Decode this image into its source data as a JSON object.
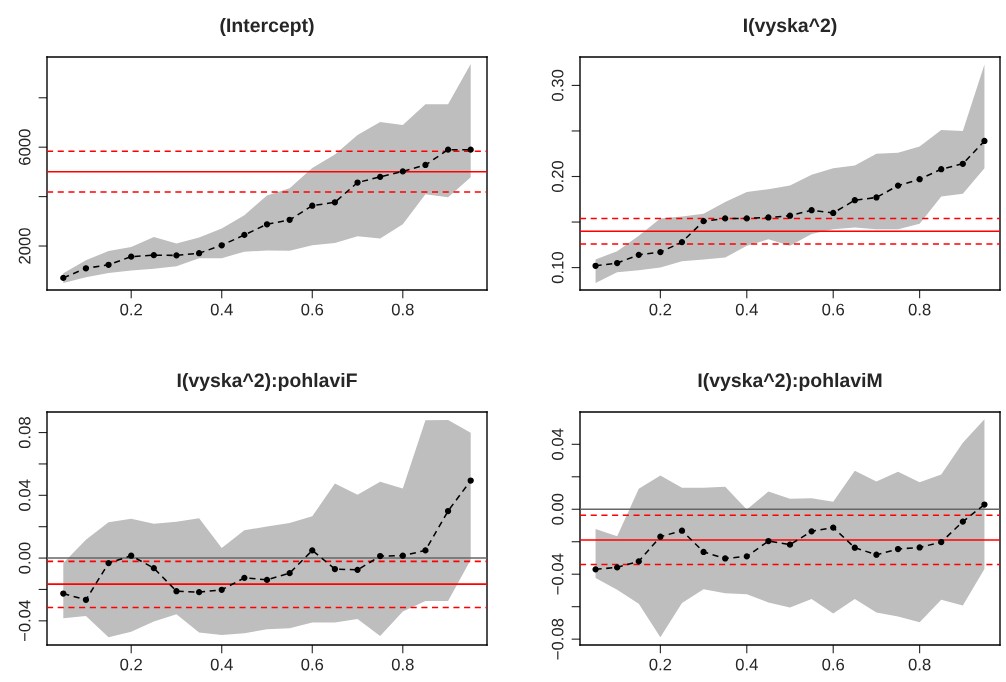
{
  "chart_data": [
    {
      "type": "line",
      "title": "(Intercept)",
      "x": [
        0.05,
        0.1,
        0.15,
        0.2,
        0.25,
        0.3,
        0.35,
        0.4,
        0.45,
        0.5,
        0.55,
        0.6,
        0.65,
        0.7,
        0.75,
        0.8,
        0.85,
        0.9,
        0.95
      ],
      "series": [
        {
          "color": "#000000",
          "values": [
            710,
            1100,
            1240,
            1570,
            1630,
            1620,
            1710,
            2030,
            2450,
            2880,
            3060,
            3630,
            3770,
            4570,
            4800,
            5020,
            5280,
            5900,
            5900
          ],
          "upper": [
            900,
            1420,
            1800,
            1960,
            2370,
            2100,
            2340,
            2710,
            3250,
            4040,
            4340,
            5160,
            5700,
            6490,
            7020,
            6900,
            7740,
            7740,
            9370
          ],
          "lower": [
            500,
            740,
            910,
            1010,
            1080,
            1180,
            1510,
            1510,
            1770,
            1820,
            1810,
            2030,
            2120,
            2400,
            2300,
            2880,
            4100,
            3970,
            4780
          ]
        }
      ],
      "xlim": [
        0.014,
        0.986
      ],
      "xticks": [
        0.2,
        0.4,
        0.6,
        0.8
      ],
      "ylim": [
        220,
        9650
      ],
      "yticks": [
        2000,
        {
          "value": 4000,
          "label": null
        },
        6000,
        {
          "value": 8000,
          "label": null
        }
      ],
      "ref_lines": [
        {
          "axis": "y",
          "value": 5840,
          "color": "#ff0000",
          "line_style": "dashed"
        },
        {
          "axis": "y",
          "value": 5010,
          "color": "#ff0000",
          "line_style": "solid"
        },
        {
          "axis": "y",
          "value": 4190,
          "color": "#ff0000",
          "line_style": "dashed"
        }
      ],
      "marker": "circle",
      "line_style": "dashed",
      "grid": false
    },
    {
      "type": "line",
      "title": "I(vyska^2)",
      "x": [
        0.05,
        0.1,
        0.15,
        0.2,
        0.25,
        0.3,
        0.35,
        0.4,
        0.45,
        0.5,
        0.55,
        0.6,
        0.65,
        0.7,
        0.75,
        0.8,
        0.85,
        0.9,
        0.95
      ],
      "series": [
        {
          "color": "#000000",
          "values": [
            0.102,
            0.105,
            0.114,
            0.117,
            0.128,
            0.151,
            0.154,
            0.154,
            0.155,
            0.157,
            0.163,
            0.16,
            0.174,
            0.177,
            0.19,
            0.197,
            0.208,
            0.214,
            0.239
          ],
          "upper": [
            0.109,
            0.118,
            0.135,
            0.154,
            0.156,
            0.159,
            0.172,
            0.183,
            0.186,
            0.19,
            0.202,
            0.209,
            0.212,
            0.225,
            0.226,
            0.233,
            0.251,
            0.25,
            0.323
          ],
          "lower": [
            0.083,
            0.095,
            0.097,
            0.1,
            0.107,
            0.109,
            0.111,
            0.124,
            0.131,
            0.124,
            0.137,
            0.142,
            0.144,
            0.142,
            0.142,
            0.148,
            0.178,
            0.181,
            0.209
          ]
        }
      ],
      "xlim": [
        0.014,
        0.986
      ],
      "xticks": [
        0.2,
        0.4,
        0.6,
        0.8
      ],
      "ylim": [
        0.0754,
        0.3312
      ],
      "yticks": [
        {
          "value": 0.1,
          "label": "0.10"
        },
        {
          "value": 0.15,
          "label": null
        },
        {
          "value": 0.2,
          "label": "0.20"
        },
        {
          "value": 0.25,
          "label": null
        },
        {
          "value": 0.3,
          "label": "0.30"
        }
      ],
      "ref_lines": [
        {
          "axis": "y",
          "value": 0.154,
          "color": "#ff0000",
          "line_style": "dashed"
        },
        {
          "axis": "y",
          "value": 0.14,
          "color": "#ff0000",
          "line_style": "solid"
        },
        {
          "axis": "y",
          "value": 0.126,
          "color": "#ff0000",
          "line_style": "dashed"
        }
      ],
      "marker": "circle",
      "line_style": "dashed",
      "grid": false
    },
    {
      "type": "line",
      "title": "I(vyska^2):pohlaviF",
      "x": [
        0.05,
        0.1,
        0.15,
        0.2,
        0.25,
        0.3,
        0.35,
        0.4,
        0.45,
        0.5,
        0.55,
        0.6,
        0.65,
        0.7,
        0.75,
        0.8,
        0.85,
        0.9,
        0.95
      ],
      "series": [
        {
          "color": "#000000",
          "values": [
            -0.0226,
            -0.0266,
            -0.0032,
            0.0015,
            -0.0064,
            -0.0211,
            -0.0217,
            -0.0202,
            -0.0126,
            -0.0139,
            -0.0096,
            0.0049,
            -0.007,
            -0.0075,
            0.0013,
            0.0015,
            0.0049,
            0.03,
            0.0494
          ],
          "upper": [
            -0.0032,
            0.0117,
            0.0228,
            0.0251,
            0.0219,
            0.0232,
            0.0254,
            0.0064,
            0.0177,
            0.0202,
            0.0224,
            0.0266,
            0.0475,
            0.0403,
            0.0486,
            0.0443,
            0.0878,
            0.088,
            0.0799
          ],
          "lower": [
            -0.0384,
            -0.0369,
            -0.0505,
            -0.0469,
            -0.0405,
            -0.0358,
            -0.0475,
            -0.049,
            -0.0479,
            -0.0454,
            -0.0448,
            -0.0411,
            -0.0411,
            -0.0388,
            -0.0497,
            -0.0341,
            -0.0273,
            -0.0273,
            -0.0011
          ]
        }
      ],
      "xlim": [
        0.014,
        0.986
      ],
      "xticks": [
        0.2,
        0.4,
        0.6,
        0.8
      ],
      "ylim": [
        -0.0554,
        0.0931
      ],
      "yticks": [
        {
          "value": -0.04,
          "label": "−0.04"
        },
        {
          "value": -0.02,
          "label": null
        },
        {
          "value": 0,
          "label": "0.00"
        },
        {
          "value": 0.02,
          "label": null
        },
        {
          "value": 0.04,
          "label": "0.04"
        },
        {
          "value": 0.06,
          "label": null
        },
        {
          "value": 0.08,
          "label": "0.08"
        }
      ],
      "ref_lines": [
        {
          "axis": "y",
          "value": 0,
          "color": "#666666",
          "line_style": "solid"
        },
        {
          "axis": "y",
          "value": -0.0021,
          "color": "#ff0000",
          "line_style": "dashed"
        },
        {
          "axis": "y",
          "value": -0.0166,
          "color": "#ff0000",
          "line_style": "solid"
        },
        {
          "axis": "y",
          "value": -0.0315,
          "color": "#ff0000",
          "line_style": "dashed"
        }
      ],
      "marker": "circle",
      "line_style": "dashed",
      "grid": false
    },
    {
      "type": "line",
      "title": "I(vyska^2):pohlaviM",
      "x": [
        0.05,
        0.1,
        0.15,
        0.2,
        0.25,
        0.3,
        0.35,
        0.4,
        0.45,
        0.5,
        0.55,
        0.6,
        0.65,
        0.7,
        0.75,
        0.8,
        0.85,
        0.9,
        0.95
      ],
      "series": [
        {
          "color": "#000000",
          "values": [
            -0.037,
            -0.0358,
            -0.0321,
            -0.0169,
            -0.0132,
            -0.0263,
            -0.0303,
            -0.029,
            -0.0196,
            -0.0218,
            -0.0136,
            -0.0113,
            -0.0237,
            -0.028,
            -0.0245,
            -0.0235,
            -0.0202,
            -0.0076,
            0.0029
          ],
          "upper": [
            -0.0121,
            -0.0167,
            0.0126,
            0.0208,
            0.0132,
            0.0132,
            0.0138,
            -0.0002,
            0.0109,
            0.0064,
            0.0068,
            0.0047,
            0.0237,
            0.0171,
            0.0231,
            0.0167,
            0.0214,
            0.041,
            0.0554
          ],
          "lower": [
            -0.0424,
            -0.0496,
            -0.0582,
            -0.0788,
            -0.0578,
            -0.0492,
            -0.0517,
            -0.0523,
            -0.0574,
            -0.0605,
            -0.0552,
            -0.0642,
            -0.0552,
            -0.0636,
            -0.0661,
            -0.0696,
            -0.0558,
            -0.0593,
            -0.0368
          ]
        }
      ],
      "xlim": [
        0.014,
        0.986
      ],
      "xticks": [
        0.2,
        0.4,
        0.6,
        0.8
      ],
      "ylim": [
        -0.0836,
        0.0599
      ],
      "yticks": [
        {
          "value": -0.08,
          "label": "−0.08"
        },
        {
          "value": -0.06,
          "label": null
        },
        {
          "value": -0.04,
          "label": "−0.04"
        },
        {
          "value": -0.02,
          "label": null
        },
        {
          "value": 0,
          "label": "0.00"
        },
        {
          "value": 0.02,
          "label": null
        },
        {
          "value": 0.04,
          "label": "0.04"
        }
      ],
      "ref_lines": [
        {
          "axis": "y",
          "value": 0,
          "color": "#666666",
          "line_style": "solid"
        },
        {
          "axis": "y",
          "value": -0.0037,
          "color": "#ff0000",
          "line_style": "dashed"
        },
        {
          "axis": "y",
          "value": -0.0189,
          "color": "#ff0000",
          "line_style": "solid"
        },
        {
          "axis": "y",
          "value": -0.034,
          "color": "#ff0000",
          "line_style": "dashed"
        }
      ],
      "marker": "circle",
      "line_style": "dashed",
      "grid": false
    }
  ]
}
